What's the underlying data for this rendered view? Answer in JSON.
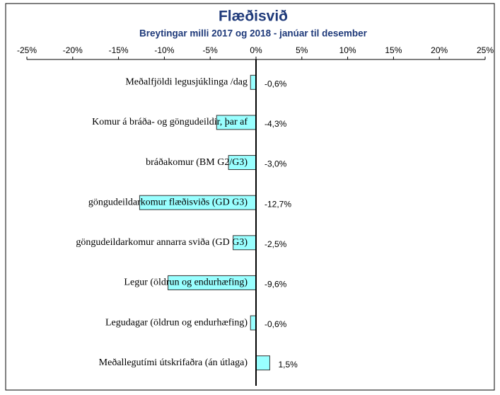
{
  "chart_data": {
    "type": "hbar",
    "title": "Flæðisvið",
    "subtitle": "Breytingar milli 2017 og 2018 - janúar til desember",
    "categories": [
      "Meðalfjöldi legusjúklinga /dag",
      "Komur á bráða- og göngudeildir, þar af",
      "bráðakomur (BM G2/G3)",
      "göngudeildarkomur flæðisviðs (GD G3)",
      "göngudeildarkomur annarra sviða (GD G3)",
      "Legur (öldrun og endurhæfing)",
      "Legudagar (öldrun og endurhæfing)",
      "Meðallegutími útskrifaðra (án útlaga)"
    ],
    "values": [
      -0.6,
      -4.3,
      -3.0,
      -12.7,
      -2.5,
      -9.6,
      -0.6,
      1.5
    ],
    "value_labels": [
      "-0,6%",
      "-4,3%",
      "-3,0%",
      "-12,7%",
      "-2,5%",
      "-9,6%",
      "-0,6%",
      "1,5%"
    ],
    "color": "#99ffff",
    "xlim": [
      -25,
      25
    ],
    "xticks": [
      {
        "value": -25,
        "label": "-25%"
      },
      {
        "value": -20,
        "label": "-20%"
      },
      {
        "value": -15,
        "label": "-15%"
      },
      {
        "value": -10,
        "label": "-10%"
      },
      {
        "value": -5,
        "label": "-5%"
      },
      {
        "value": 0,
        "label": "0%"
      },
      {
        "value": 5,
        "label": "5%"
      },
      {
        "value": 10,
        "label": "10%"
      },
      {
        "value": 15,
        "label": "15%"
      },
      {
        "value": 20,
        "label": "20%"
      },
      {
        "value": 25,
        "label": "25%"
      }
    ]
  }
}
